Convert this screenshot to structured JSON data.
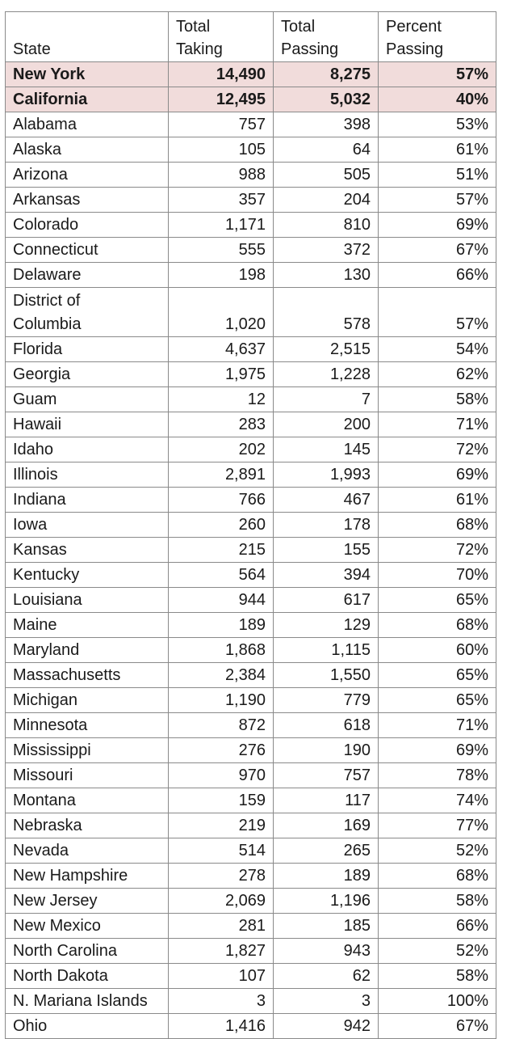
{
  "header": {
    "state": "State",
    "taking": [
      "Total",
      "Taking"
    ],
    "passing": [
      "Total",
      "Passing"
    ],
    "percent": [
      "Percent",
      "Passing"
    ]
  },
  "highlight_color": "#f1dcdb",
  "rows": [
    {
      "state": "New York",
      "taking": "14,490",
      "passing": "8,275",
      "percent": "57%",
      "highlight": true
    },
    {
      "state": "California",
      "taking": "12,495",
      "passing": "5,032",
      "percent": "40%",
      "highlight": true
    },
    {
      "state": "Alabama",
      "taking": "757",
      "passing": "398",
      "percent": "53%"
    },
    {
      "state": "Alaska",
      "taking": "105",
      "passing": "64",
      "percent": "61%"
    },
    {
      "state": "Arizona",
      "taking": "988",
      "passing": "505",
      "percent": "51%"
    },
    {
      "state": "Arkansas",
      "taking": "357",
      "passing": "204",
      "percent": "57%"
    },
    {
      "state": "Colorado",
      "taking": "1,171",
      "passing": "810",
      "percent": "69%"
    },
    {
      "state": "Connecticut",
      "taking": "555",
      "passing": "372",
      "percent": "67%"
    },
    {
      "state": "Delaware",
      "taking": "198",
      "passing": "130",
      "percent": "66%"
    },
    {
      "state": [
        "District of",
        "Columbia"
      ],
      "taking": "1,020",
      "passing": "578",
      "percent": "57%"
    },
    {
      "state": "Florida",
      "taking": "4,637",
      "passing": "2,515",
      "percent": "54%"
    },
    {
      "state": "Georgia",
      "taking": "1,975",
      "passing": "1,228",
      "percent": "62%"
    },
    {
      "state": "Guam",
      "taking": "12",
      "passing": "7",
      "percent": "58%"
    },
    {
      "state": "Hawaii",
      "taking": "283",
      "passing": "200",
      "percent": "71%"
    },
    {
      "state": "Idaho",
      "taking": "202",
      "passing": "145",
      "percent": "72%"
    },
    {
      "state": "Illinois",
      "taking": "2,891",
      "passing": "1,993",
      "percent": "69%"
    },
    {
      "state": "Indiana",
      "taking": "766",
      "passing": "467",
      "percent": "61%"
    },
    {
      "state": "Iowa",
      "taking": "260",
      "passing": "178",
      "percent": "68%"
    },
    {
      "state": "Kansas",
      "taking": "215",
      "passing": "155",
      "percent": "72%"
    },
    {
      "state": "Kentucky",
      "taking": "564",
      "passing": "394",
      "percent": "70%"
    },
    {
      "state": "Louisiana",
      "taking": "944",
      "passing": "617",
      "percent": "65%"
    },
    {
      "state": "Maine",
      "taking": "189",
      "passing": "129",
      "percent": "68%"
    },
    {
      "state": "Maryland",
      "taking": "1,868",
      "passing": "1,115",
      "percent": "60%"
    },
    {
      "state": "Massachusetts",
      "taking": "2,384",
      "passing": "1,550",
      "percent": "65%"
    },
    {
      "state": "Michigan",
      "taking": "1,190",
      "passing": "779",
      "percent": "65%"
    },
    {
      "state": "Minnesota",
      "taking": "872",
      "passing": "618",
      "percent": "71%"
    },
    {
      "state": "Mississippi",
      "taking": "276",
      "passing": "190",
      "percent": "69%"
    },
    {
      "state": "Missouri",
      "taking": "970",
      "passing": "757",
      "percent": "78%"
    },
    {
      "state": "Montana",
      "taking": "159",
      "passing": "117",
      "percent": "74%"
    },
    {
      "state": "Nebraska",
      "taking": "219",
      "passing": "169",
      "percent": "77%"
    },
    {
      "state": "Nevada",
      "taking": "514",
      "passing": "265",
      "percent": "52%"
    },
    {
      "state": "New Hampshire",
      "taking": "278",
      "passing": "189",
      "percent": "68%"
    },
    {
      "state": "New Jersey",
      "taking": "2,069",
      "passing": "1,196",
      "percent": "58%"
    },
    {
      "state": "New Mexico",
      "taking": "281",
      "passing": "185",
      "percent": "66%"
    },
    {
      "state": "North Carolina",
      "taking": "1,827",
      "passing": "943",
      "percent": "52%"
    },
    {
      "state": "North Dakota",
      "taking": "107",
      "passing": "62",
      "percent": "58%"
    },
    {
      "state": "N. Mariana Islands",
      "taking": "3",
      "passing": "3",
      "percent": "100%"
    },
    {
      "state": "Ohio",
      "taking": "1,416",
      "passing": "942",
      "percent": "67%"
    }
  ]
}
